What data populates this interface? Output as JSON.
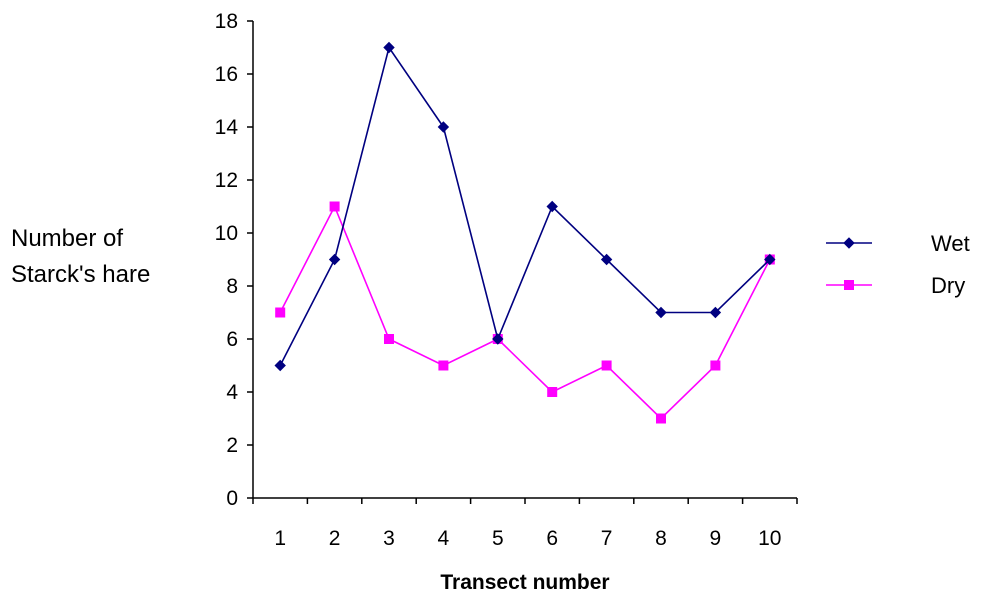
{
  "chart_data": {
    "type": "line",
    "title": "",
    "xlabel": "Transect number",
    "ylabel": [
      "Number of",
      "Starck's hare"
    ],
    "categories": [
      "1",
      "2",
      "3",
      "4",
      "5",
      "6",
      "7",
      "8",
      "9",
      "10"
    ],
    "ylim": [
      0,
      18
    ],
    "yticks": [
      "0",
      "2",
      "4",
      "6",
      "8",
      "10",
      "12",
      "14",
      "16",
      "18"
    ],
    "grid": false,
    "legend_position": "right",
    "series": [
      {
        "name": "Wet",
        "color": "#000080",
        "marker": "diamond",
        "values": [
          5,
          9,
          17,
          14,
          6,
          11,
          9,
          7,
          7,
          9
        ]
      },
      {
        "name": "Dry",
        "color": "#ff00ff",
        "marker": "square",
        "values": [
          7,
          11,
          6,
          5,
          6,
          4,
          5,
          3,
          5,
          9
        ]
      }
    ]
  }
}
